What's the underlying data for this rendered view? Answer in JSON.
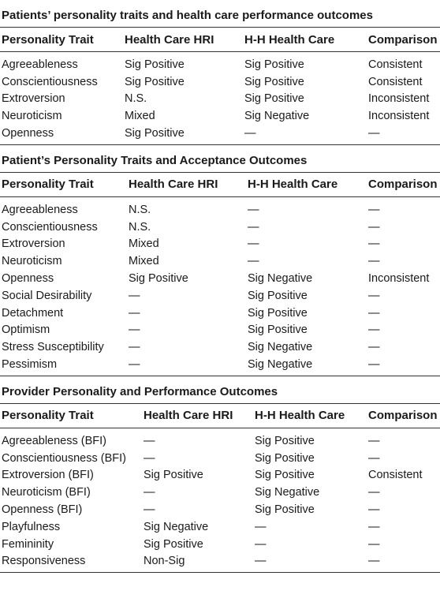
{
  "sections": [
    {
      "title": "Patients’ personality traits and health care performance outcomes",
      "headers": [
        "Personality Trait",
        "Health Care HRI",
        "H-H Health Care",
        "Comparison"
      ],
      "rows": [
        [
          "Agreeableness",
          "Sig Positive",
          "Sig Positive",
          "Consistent"
        ],
        [
          "Conscientiousness",
          "Sig Positive",
          "Sig Positive",
          "Consistent"
        ],
        [
          "Extroversion",
          "N.S.",
          "Sig Positive",
          "Inconsistent"
        ],
        [
          "Neuroticism",
          "Mixed",
          "Sig Negative",
          "Inconsistent"
        ],
        [
          "Openness",
          "Sig Positive",
          "—",
          "—"
        ]
      ]
    },
    {
      "title": "Patient’s Personality Traits and Acceptance Outcomes",
      "headers": [
        "Personality Trait",
        "Health Care HRI",
        "H-H Health Care",
        "Comparison"
      ],
      "rows": [
        [
          "Agreeableness",
          "N.S.",
          "—",
          "—"
        ],
        [
          "Conscientiousness",
          "N.S.",
          "—",
          "—"
        ],
        [
          "Extroversion",
          "Mixed",
          "—",
          "—"
        ],
        [
          "Neuroticism",
          "Mixed",
          "—",
          "—"
        ],
        [
          "Openness",
          "Sig Positive",
          "Sig Negative",
          "Inconsistent"
        ],
        [
          "Social Desirability",
          "—",
          "Sig Positive",
          "—"
        ],
        [
          "Detachment",
          "—",
          "Sig Positive",
          "—"
        ],
        [
          "Optimism",
          "—",
          "Sig Positive",
          "—"
        ],
        [
          "Stress Susceptibility",
          "—",
          "Sig Negative",
          "—"
        ],
        [
          "Pessimism",
          "—",
          "Sig Negative",
          "—"
        ]
      ]
    },
    {
      "title": "Provider Personality and Performance Outcomes",
      "headers": [
        "Personality Trait",
        "Health Care HRI",
        "H-H Health Care",
        "Comparison"
      ],
      "rows": [
        [
          "Agreeableness (BFI)",
          "—",
          "Sig Positive",
          "—"
        ],
        [
          "Conscientiousness (BFI)",
          "—",
          "Sig Positive",
          "—"
        ],
        [
          "Extroversion (BFI)",
          "Sig Positive",
          "Sig Positive",
          "Consistent"
        ],
        [
          "Neuroticism (BFI)",
          "—",
          "Sig Negative",
          "—"
        ],
        [
          "Openness (BFI)",
          "—",
          "Sig Positive",
          "—"
        ],
        [
          "Playfulness",
          "Sig Negative",
          "—",
          "—"
        ],
        [
          "Femininity",
          "Sig Positive",
          "—",
          "—"
        ],
        [
          "Responsiveness",
          "Non-Sig",
          "—",
          "—"
        ]
      ]
    }
  ]
}
